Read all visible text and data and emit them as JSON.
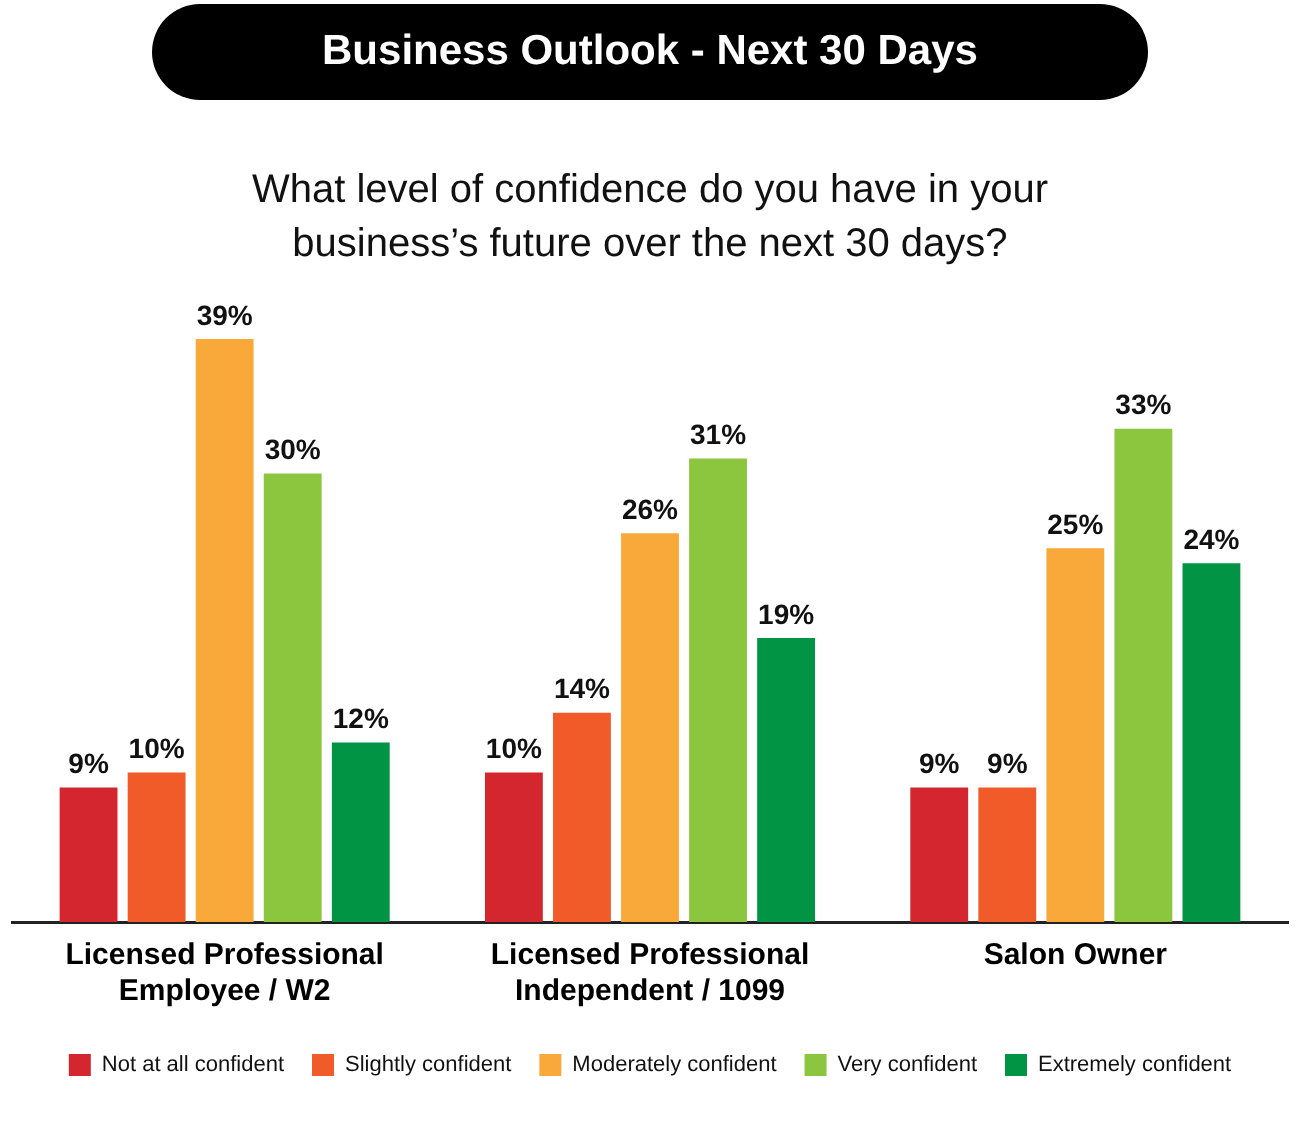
{
  "chart_data": {
    "type": "bar",
    "title": "Business Outlook - Next 30 Days",
    "subtitle": "What level of confidence do you have in your business’s future over the next 30 days?",
    "categories": [
      "Licensed Professional Employee / W2",
      "Licensed Professional Independent / 1099",
      "Salon Owner"
    ],
    "legend": "bottom",
    "grid": false,
    "tick_labels": "x",
    "series": [
      {
        "name": "Not at all confident",
        "color": "#d3262e",
        "values": [
          9,
          10,
          9
        ],
        "value_labels": [
          "9%",
          "10%",
          "9%"
        ]
      },
      {
        "name": "Slightly confident",
        "color": "#f15a29",
        "values": [
          10,
          14,
          9
        ],
        "value_labels": [
          "10%",
          "14%",
          "9%"
        ]
      },
      {
        "name": "Moderately confident",
        "color": "#f9a83a",
        "values": [
          39,
          26,
          25
        ],
        "value_labels": [
          "39%",
          "26%",
          "25%"
        ]
      },
      {
        "name": "Very confident",
        "color": "#8cc63f",
        "values": [
          30,
          31,
          33
        ],
        "value_labels": [
          "30%",
          "31%",
          "33%"
        ]
      },
      {
        "name": "Extremely confident",
        "color": "#009444",
        "values": [
          12,
          19,
          24
        ],
        "value_labels": [
          "12%",
          "19%",
          "24%"
        ]
      }
    ]
  }
}
